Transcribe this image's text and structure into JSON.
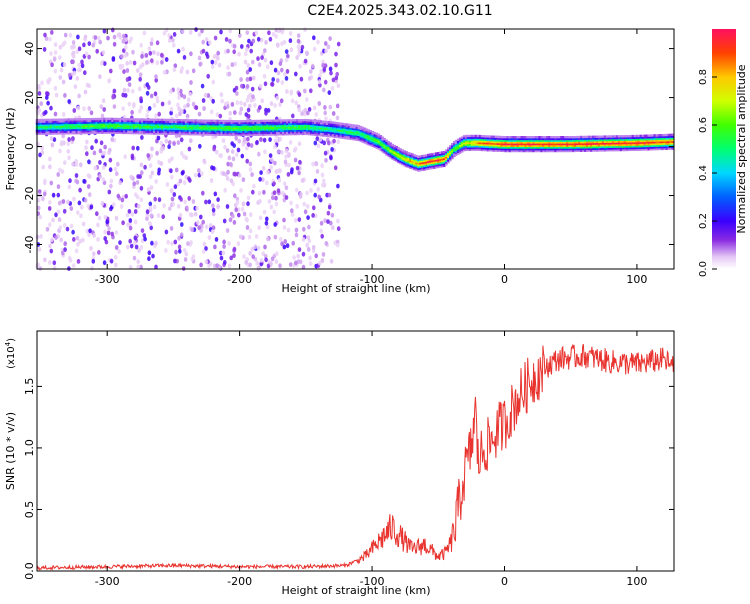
{
  "title": "C2E4.2025.343.02.10.G11",
  "colors": {
    "snr_line": "#e8332e",
    "background": "#ffffff"
  },
  "chart_data": [
    {
      "type": "heatmap",
      "xlabel": "Height of straight line (km)",
      "ylabel": "Frequency (Hz)",
      "xlim": [
        -353,
        128
      ],
      "ylim": [
        -50,
        48
      ],
      "xticks": [
        -300,
        -200,
        -100,
        0,
        100
      ],
      "yticks": [
        -40,
        -20,
        0,
        20,
        40
      ],
      "colorbar": {
        "label": "Normalized spectral amplitude",
        "range": [
          0.0,
          1.0
        ],
        "ticks": [
          0.0,
          0.2,
          0.4,
          0.6,
          0.8
        ],
        "colormap": "rainbow"
      },
      "ridge": {
        "description": "dominant frequency track",
        "x": [
          -353,
          -300,
          -250,
          -200,
          -150,
          -130,
          -110,
          -95,
          -85,
          -75,
          -65,
          -55,
          -45,
          -38,
          -30,
          -20,
          0,
          50,
          100,
          128
        ],
        "y": [
          8,
          8.5,
          8,
          7.5,
          8,
          7,
          5.5,
          2,
          -2,
          -5,
          -7,
          -6,
          -5,
          -1,
          1.5,
          1.5,
          1,
          1,
          1.5,
          2
        ],
        "amplitude": [
          0.5,
          0.6,
          0.55,
          0.6,
          0.55,
          0.5,
          0.55,
          0.6,
          0.65,
          0.75,
          0.85,
          0.95,
          0.9,
          0.6,
          0.7,
          0.85,
          0.95,
          0.95,
          0.95,
          0.9
        ]
      }
    },
    {
      "type": "line",
      "xlabel": "Height of straight line (km)",
      "ylabel": "SNR (10 * v/v)",
      "yscale_label": "(x10",
      "yscale_exponent": "4",
      "xlim": [
        -353,
        128
      ],
      "ylim": [
        0,
        1.95
      ],
      "xticks": [
        -300,
        -200,
        -100,
        0,
        100
      ],
      "yticks": [
        0.0,
        0.5,
        1.0,
        1.5
      ],
      "ytick_labels": [
        "0.0",
        "0.5",
        "1.0",
        "1.5"
      ],
      "series": [
        {
          "x": [
            -353,
            -300,
            -250,
            -200,
            -150,
            -120,
            -105,
            -95,
            -85,
            -80,
            -75,
            -70,
            -60,
            -50,
            -45,
            -40,
            -35,
            -30,
            -25,
            -22,
            -20,
            -15,
            -10,
            -5,
            0,
            10,
            20,
            30,
            40,
            60,
            80,
            100,
            120,
            128
          ],
          "y": [
            0.01,
            0.02,
            0.03,
            0.02,
            0.02,
            0.03,
            0.1,
            0.2,
            0.3,
            0.25,
            0.2,
            0.15,
            0.18,
            0.1,
            0.12,
            0.2,
            0.5,
            0.8,
            1.0,
            1.3,
            0.9,
            1.0,
            1.05,
            1.15,
            1.2,
            1.4,
            1.55,
            1.65,
            1.72,
            1.75,
            1.7,
            1.68,
            1.72,
            1.65
          ]
        }
      ]
    }
  ]
}
